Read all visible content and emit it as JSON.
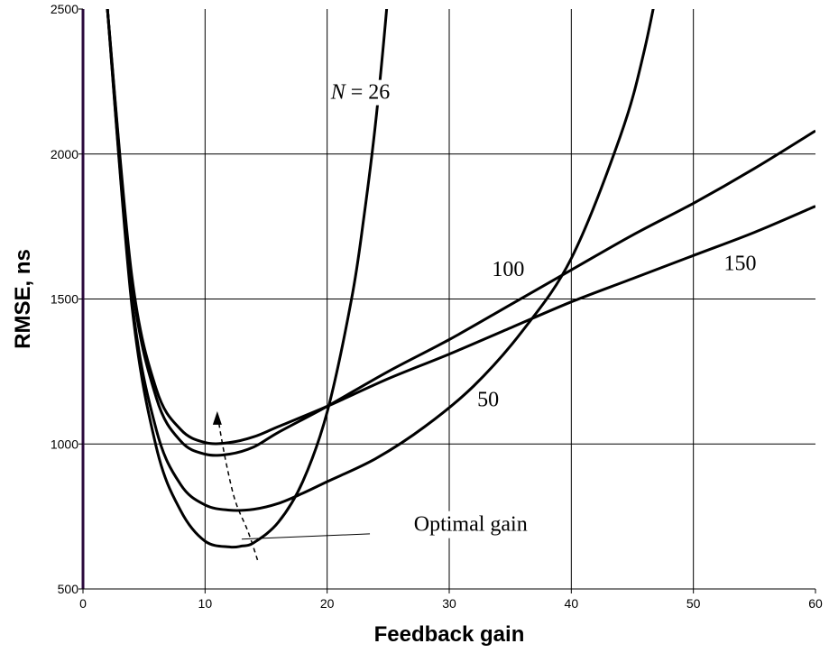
{
  "chart_data": {
    "type": "line",
    "title": "",
    "xlabel": "Feedback gain",
    "ylabel": "RMSE, ns",
    "xlim": [
      0,
      60
    ],
    "ylim": [
      500,
      2500
    ],
    "xticks": [
      0,
      10,
      20,
      30,
      40,
      50,
      60
    ],
    "yticks": [
      500,
      1000,
      1500,
      2000,
      2500
    ],
    "grid": true,
    "series": [
      {
        "name": "N = 26",
        "x": [
          2,
          4,
          6,
          8,
          10,
          12,
          13,
          14,
          16,
          18,
          20,
          22,
          23,
          24,
          25,
          26
        ],
        "y": [
          2500,
          1480,
          990,
          770,
          665,
          645,
          648,
          660,
          730,
          870,
          1110,
          1500,
          1780,
          2120,
          2560,
          3100
        ]
      },
      {
        "name": "50",
        "x": [
          2,
          4,
          6,
          8,
          10,
          12,
          14,
          16,
          18,
          20,
          24,
          28,
          32,
          36,
          40,
          44,
          46,
          48
        ],
        "y": [
          2500,
          1500,
          1050,
          860,
          790,
          772,
          775,
          795,
          830,
          870,
          950,
          1060,
          1200,
          1390,
          1640,
          2060,
          2360,
          2780
        ]
      },
      {
        "name": "100",
        "x": [
          2,
          4,
          6,
          8,
          10,
          12,
          14,
          16,
          20,
          25,
          30,
          35,
          40,
          45,
          50,
          55,
          60
        ],
        "y": [
          2500,
          1560,
          1160,
          1010,
          965,
          965,
          990,
          1040,
          1130,
          1250,
          1360,
          1480,
          1600,
          1720,
          1830,
          1950,
          2080
        ]
      },
      {
        "name": "150",
        "x": [
          2,
          4,
          6,
          8,
          10,
          12,
          14,
          16,
          20,
          25,
          30,
          35,
          40,
          45,
          50,
          55,
          60
        ],
        "y": [
          2500,
          1580,
          1190,
          1050,
          1005,
          1005,
          1025,
          1060,
          1130,
          1225,
          1310,
          1400,
          1490,
          1570,
          1650,
          1730,
          1820
        ]
      }
    ],
    "optimal_gain_path": {
      "x": [
        14.3,
        13.5,
        12.5,
        11.8,
        11.3,
        11.0
      ],
      "y": [
        600,
        700,
        800,
        920,
        1030,
        1110
      ]
    },
    "annotations": [
      {
        "text": "N = 26",
        "italic_part": "N",
        "x": 20.3,
        "y": 2190
      },
      {
        "text": "50",
        "x": 32.3,
        "y": 1130
      },
      {
        "text": "100",
        "x": 33.5,
        "y": 1580
      },
      {
        "text": "150",
        "x": 52.5,
        "y": 1600
      },
      {
        "text": "Optimal gain",
        "x": 27.1,
        "y": 700
      }
    ]
  }
}
